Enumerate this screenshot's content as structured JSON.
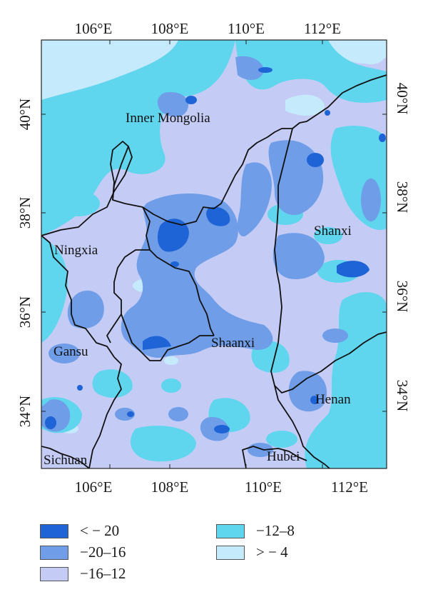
{
  "colors": {
    "lt20": "#1f64d6",
    "b20_16": "#6f9de8",
    "b16_12": "#c4ccf6",
    "b12_8": "#5fd5ee",
    "gt4": "#c4eafb",
    "border": "#111111"
  },
  "axes": {
    "lon_ticks": [
      "106°E",
      "108°E",
      "110°E",
      "112°E"
    ],
    "lat_ticks": [
      "34°N",
      "36°N",
      "38°N",
      "40°N"
    ]
  },
  "regions": [
    {
      "name": "Inner Mongolia"
    },
    {
      "name": "Ningxia"
    },
    {
      "name": "Shanxi"
    },
    {
      "name": "Shaanxi"
    },
    {
      "name": "Gansu"
    },
    {
      "name": "Henan"
    },
    {
      "name": "Sichuan"
    },
    {
      "name": "Hubei"
    }
  ],
  "legend": [
    {
      "label": "< − 20",
      "color": "#1f64d6"
    },
    {
      "label": "−20–16",
      "color": "#6f9de8"
    },
    {
      "label": "−16–12",
      "color": "#c4ccf6"
    },
    {
      "label": "−12–8",
      "color": "#5fd5ee"
    },
    {
      "label": "> − 4",
      "color": "#c4eafb"
    }
  ]
}
